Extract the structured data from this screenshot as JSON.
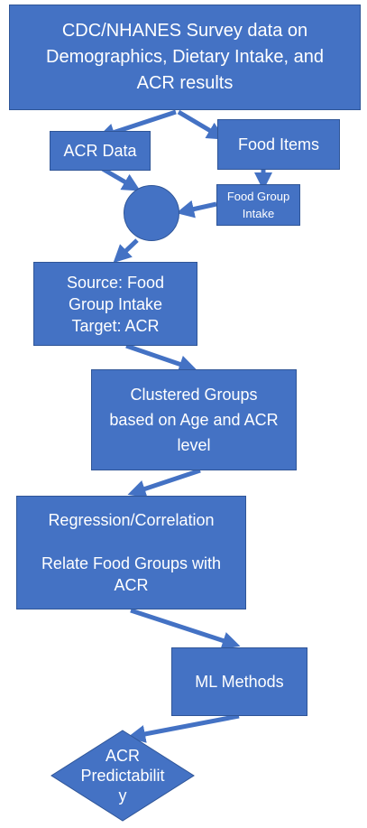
{
  "nodes": {
    "source_data": "CDC/NHANES Survey data on\nDemographics, Dietary Intake, and\nACR results",
    "acr_data": "ACR Data",
    "food_items": "Food Items",
    "food_group_intake": "Food Group\nIntake",
    "source_target": "Source: Food\nGroup Intake\nTarget: ACR",
    "clustered_groups": "Clustered Groups\nbased on Age and ACR\nlevel",
    "regression": "Regression/Correlation\n\nRelate Food Groups with\nACR",
    "ml_methods": "ML Methods",
    "acr_predictability": "ACR\nPredictabilit\ny"
  },
  "colors": {
    "fill": "#4472c4",
    "stroke": "#2f5597"
  }
}
